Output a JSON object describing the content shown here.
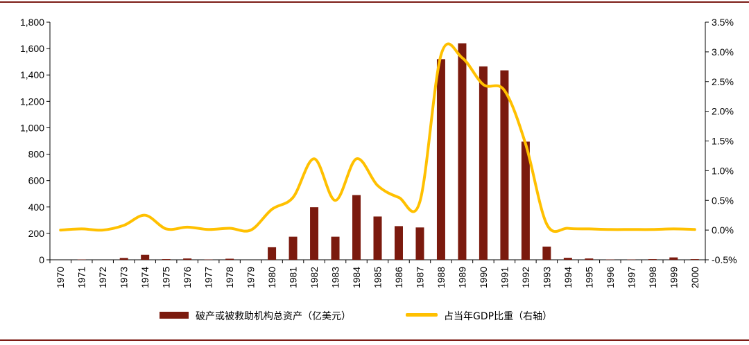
{
  "chart_data": {
    "type": "bar",
    "categories": [
      "1970",
      "1971",
      "1972",
      "1973",
      "1974",
      "1975",
      "1976",
      "1977",
      "1978",
      "1979",
      "1980",
      "1981",
      "1982",
      "1983",
      "1984",
      "1985",
      "1986",
      "1987",
      "1988",
      "1989",
      "1990",
      "1991",
      "1992",
      "1993",
      "1994",
      "1995",
      "1996",
      "1997",
      "1998",
      "1999",
      "2000"
    ],
    "series": [
      {
        "name": "破产或被救助机构总资产（亿美元）",
        "type": "bar",
        "axis": "left",
        "color": "#7b1a0e",
        "values": [
          0,
          2,
          0,
          14,
          38,
          5,
          10,
          2,
          8,
          0,
          95,
          175,
          398,
          175,
          490,
          328,
          255,
          245,
          1520,
          1640,
          1465,
          1435,
          895,
          100,
          15,
          10,
          2,
          2,
          5,
          18,
          5
        ]
      },
      {
        "name": "占当年GDP比重（右轴）",
        "type": "line",
        "axis": "right",
        "color": "#ffc000",
        "values": [
          0.0,
          0.02,
          0.0,
          0.08,
          0.25,
          0.02,
          0.05,
          0.01,
          0.03,
          0.0,
          0.35,
          0.55,
          1.2,
          0.5,
          1.2,
          0.75,
          0.55,
          0.48,
          2.95,
          2.9,
          2.45,
          2.35,
          1.45,
          0.1,
          0.03,
          0.02,
          0.01,
          0.01,
          0.01,
          0.02,
          0.01
        ]
      }
    ],
    "ylim": [
      0,
      1800
    ],
    "yticks": [
      "0",
      "200",
      "400",
      "600",
      "800",
      "1,000",
      "1,200",
      "1,400",
      "1,600",
      "1,800"
    ],
    "y2lim": [
      -0.5,
      3.5
    ],
    "y2ticks": [
      "-0.5%",
      "0.0%",
      "0.5%",
      "1.0%",
      "1.5%",
      "2.0%",
      "2.5%",
      "3.0%",
      "3.5%"
    ],
    "grid": false,
    "legend_position": "bottom"
  }
}
